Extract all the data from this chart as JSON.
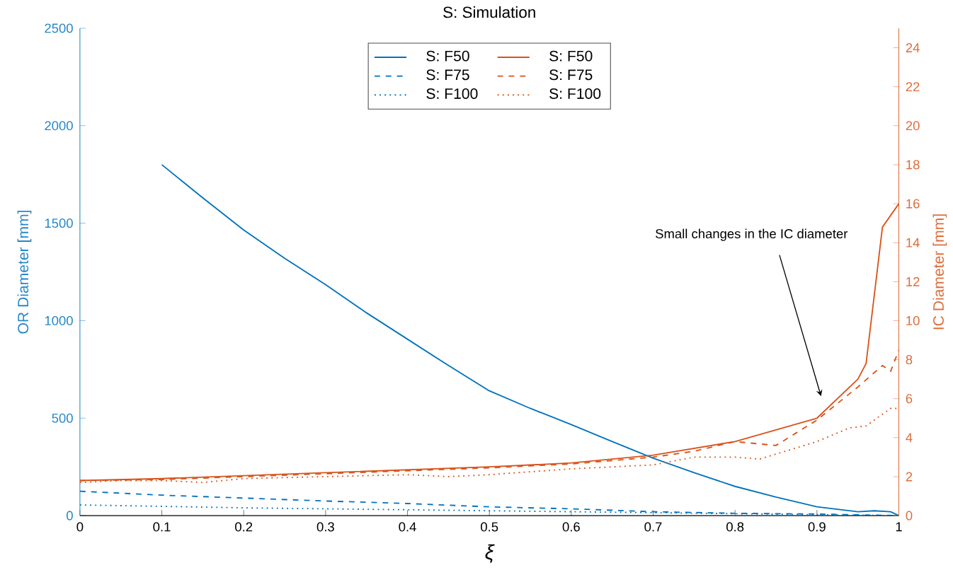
{
  "chart_data": {
    "type": "line",
    "title": "S: Simulation",
    "xlabel": "ξ",
    "ylabel": "OR Diameter [mm]",
    "y2label": "IC Diameter [mm]",
    "xlim": [
      0,
      1
    ],
    "xticks": [
      0,
      0.1,
      0.2,
      0.3,
      0.4,
      0.5,
      0.6,
      0.7,
      0.8,
      0.9,
      1
    ],
    "ylim": [
      0,
      2500
    ],
    "yticks": [
      0,
      500,
      1000,
      1500,
      2000,
      2500
    ],
    "y2lim": [
      0,
      25
    ],
    "y2ticks": [
      0,
      2,
      4,
      6,
      8,
      10,
      12,
      14,
      16,
      18,
      20,
      22,
      24
    ],
    "legend": "top",
    "annotations": [
      "Small changes in the  IC diameter"
    ],
    "series": [
      {
        "name": "S: F50",
        "color": "#0072bd",
        "line_style": "solid",
        "x": [
          0.1,
          0.15,
          0.2,
          0.25,
          0.3,
          0.35,
          0.4,
          0.45,
          0.5,
          0.55,
          0.6,
          0.65,
          0.7,
          0.75,
          0.8,
          0.85,
          0.9,
          0.95,
          0.97,
          0.99,
          1.0
        ],
        "values": [
          1800,
          1630,
          1465,
          1320,
          1185,
          1040,
          905,
          770,
          640,
          550,
          467,
          380,
          295,
          220,
          150,
          95,
          45,
          20,
          25,
          20,
          0
        ]
      },
      {
        "name": "S: F75",
        "color": "#0072bd",
        "line_style": "dashed",
        "x": [
          0,
          0.1,
          0.2,
          0.3,
          0.4,
          0.5,
          0.6,
          0.7,
          0.8,
          0.9,
          1.0
        ],
        "values": [
          125,
          105,
          90,
          75,
          62,
          45,
          35,
          20,
          12,
          8,
          0
        ]
      },
      {
        "name": "S: F100",
        "color": "#0072bd",
        "line_style": "dotted",
        "x": [
          0,
          0.2,
          0.4,
          0.6,
          0.8,
          1.0
        ],
        "values": [
          55,
          40,
          30,
          20,
          10,
          0
        ]
      },
      {
        "name": "S: F50",
        "color": "#d95319",
        "line_style": "solid",
        "axis": "y2",
        "x": [
          0,
          0.1,
          0.2,
          0.3,
          0.4,
          0.5,
          0.6,
          0.7,
          0.8,
          0.9,
          0.95,
          0.96,
          0.98,
          1.0
        ],
        "values": [
          1.8,
          1.9,
          2.05,
          2.2,
          2.35,
          2.5,
          2.7,
          3.1,
          3.8,
          5.0,
          7.0,
          7.8,
          14.8,
          16
        ]
      },
      {
        "name": "S: F75",
        "color": "#d95319",
        "line_style": "dashed",
        "axis": "y2",
        "x": [
          0,
          0.1,
          0.2,
          0.3,
          0.4,
          0.5,
          0.6,
          0.7,
          0.75,
          0.8,
          0.85,
          0.9,
          0.95,
          0.98,
          0.99,
          1.0
        ],
        "values": [
          1.8,
          1.85,
          2.0,
          2.15,
          2.3,
          2.45,
          2.65,
          3.0,
          3.3,
          3.8,
          3.6,
          4.9,
          6.6,
          7.7,
          7.4,
          8.5
        ]
      },
      {
        "name": "S: F100",
        "color": "#d95319",
        "line_style": "dotted",
        "axis": "y2",
        "x": [
          0,
          0.05,
          0.1,
          0.15,
          0.2,
          0.3,
          0.4,
          0.45,
          0.5,
          0.6,
          0.7,
          0.75,
          0.8,
          0.83,
          0.9,
          0.94,
          0.96,
          0.99,
          1.0
        ],
        "values": [
          1.7,
          1.8,
          1.8,
          1.7,
          1.9,
          2.0,
          2.1,
          2.0,
          2.1,
          2.4,
          2.6,
          3.0,
          3.0,
          2.9,
          3.8,
          4.5,
          4.6,
          5.5,
          5.5
        ]
      }
    ]
  }
}
